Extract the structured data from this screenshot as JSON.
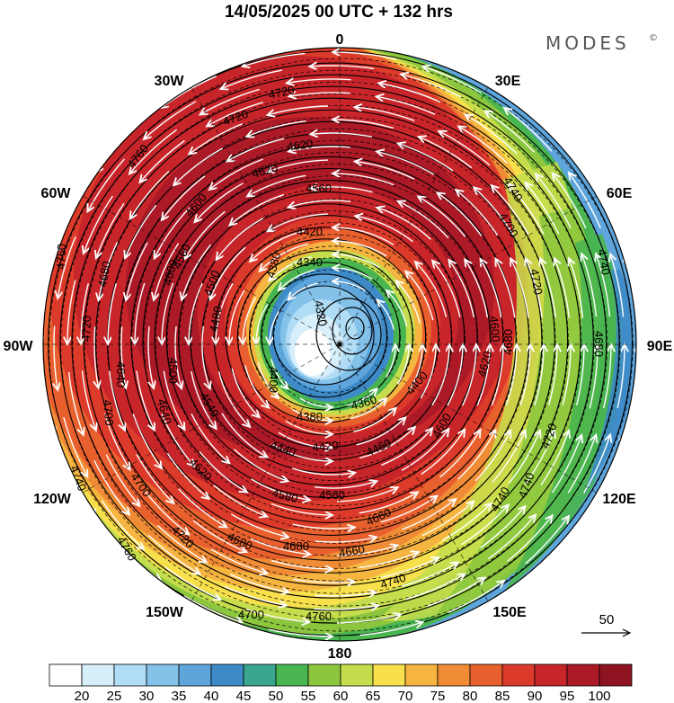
{
  "title": "14/05/2025  00 UTC  + 132 hrs",
  "brand": "MODES",
  "brand_mark": "©",
  "map": {
    "projection": "north-polar-stereographic",
    "longitude_labels": [
      {
        "text": "0",
        "lon": 0
      },
      {
        "text": "30E",
        "lon": 30
      },
      {
        "text": "60E",
        "lon": 60
      },
      {
        "text": "90E",
        "lon": 90
      },
      {
        "text": "120E",
        "lon": 120
      },
      {
        "text": "150E",
        "lon": 150
      },
      {
        "text": "180",
        "lon": 180
      },
      {
        "text": "150W",
        "lon": -150
      },
      {
        "text": "120W",
        "lon": -120
      },
      {
        "text": "90W",
        "lon": -90
      },
      {
        "text": "60W",
        "lon": -60
      },
      {
        "text": "30W",
        "lon": -30
      }
    ],
    "contour_labels": [
      "4760",
      "4740",
      "4720",
      "4700",
      "4680",
      "4660",
      "4640",
      "4620",
      "4600",
      "4580",
      "4560",
      "4540",
      "4520",
      "4500",
      "4480",
      "4460",
      "4440",
      "4420",
      "4400",
      "4380",
      "4360",
      "4340",
      "4320"
    ],
    "wind_reference": {
      "value": "50"
    }
  },
  "colorbar": {
    "levels": [
      "20",
      "25",
      "30",
      "35",
      "40",
      "45",
      "50",
      "55",
      "60",
      "65",
      "70",
      "75",
      "80",
      "85",
      "90",
      "95",
      "100"
    ],
    "colors": [
      "#ffffff",
      "#d7eefb",
      "#b1dcf6",
      "#84c2ea",
      "#5ea5dc",
      "#3d8ac7",
      "#3aa68f",
      "#49b550",
      "#8cc63e",
      "#c5dd4c",
      "#f7e04c",
      "#f6b440",
      "#f08c36",
      "#e9602f",
      "#dc3a2a",
      "#c7252a",
      "#ac1a27",
      "#8e1320"
    ]
  },
  "colors": {
    "frame": "#000000",
    "wind_arrow": "#ffffff",
    "contour": "#000000"
  }
}
